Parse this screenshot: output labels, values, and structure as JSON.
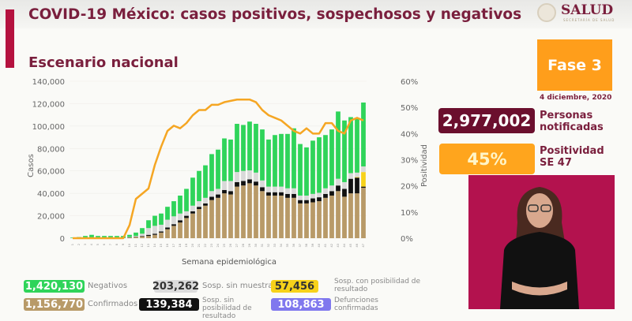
{
  "header": {
    "title": "COVID-19 México: casos positivos, sospechosos y negativos",
    "subtitle": "Escenario nacional",
    "logo_text": "SALUD",
    "logo_sub": "SECRETARÍA DE SALUD"
  },
  "panel": {
    "fase": "Fase 3",
    "date": "4 diciembre, 2020",
    "personas_value": "2,977,002",
    "personas_label_1": "Personas",
    "personas_label_2": "notificadas",
    "positividad_value": "45%",
    "positividad_label_1": "Positividad",
    "positividad_label_2": "SE 47"
  },
  "colors": {
    "negativos": "#2fd45a",
    "sin_muestra": "#d9d9d9",
    "con_posibilidad": "#f7d21a",
    "sin_posibilidad": "#111111",
    "confirmados": "#b89a68",
    "defunciones": "#8078ee",
    "line": "#f5a623",
    "maroon": "#7a1f3d"
  },
  "legend": [
    {
      "value": "1,420,130",
      "label": "Negativos"
    },
    {
      "value": "203,262",
      "label": "Sosp. sin muestra"
    },
    {
      "value": "57,456",
      "label": "Sosp. con posibilidad de resultado"
    },
    {
      "value": "1,156,770",
      "label": "Confirmados"
    },
    {
      "value": "139,384",
      "label": "Sosp. sin posibilidad de resultado"
    },
    {
      "value": "108,863",
      "label": "Defunciones confirmadas"
    }
  ],
  "chart_data": {
    "type": "bar",
    "stacked": true,
    "xlabel": "Semana epidemiológica",
    "ylabel": "Casos",
    "y2label": "Positividad",
    "ylim": [
      0,
      140000
    ],
    "y2lim": [
      0,
      60
    ],
    "yticks": [
      "0",
      "20,000",
      "40,000",
      "60,000",
      "80,000",
      "100,000",
      "120,000",
      "140,000"
    ],
    "y2ticks": [
      "0%",
      "10%",
      "20%",
      "30%",
      "40%",
      "50%",
      "60%"
    ],
    "categories": [
      1,
      2,
      3,
      4,
      5,
      6,
      7,
      8,
      9,
      10,
      11,
      12,
      13,
      14,
      15,
      16,
      17,
      18,
      19,
      20,
      21,
      22,
      23,
      24,
      25,
      26,
      27,
      28,
      29,
      30,
      31,
      32,
      33,
      34,
      35,
      36,
      37,
      38,
      39,
      40,
      41,
      42,
      43,
      44,
      45,
      46,
      47
    ],
    "series": [
      {
        "name": "Confirmados",
        "values": [
          0,
          0,
          0,
          0,
          0,
          0,
          0,
          0,
          0,
          500,
          1000,
          1500,
          2000,
          3000,
          5000,
          8000,
          11000,
          14000,
          18000,
          22000,
          26000,
          29000,
          34000,
          36000,
          40000,
          39000,
          46000,
          47000,
          49000,
          47000,
          42000,
          38000,
          38000,
          38000,
          36000,
          36000,
          31000,
          31000,
          32000,
          33000,
          36000,
          38000,
          42000,
          37000,
          40000,
          40000,
          45000
        ]
      },
      {
        "name": "Sosp. sin posibilidad de resultado",
        "values": [
          0,
          0,
          0,
          0,
          0,
          0,
          0,
          0,
          0,
          200,
          300,
          500,
          1000,
          1000,
          1000,
          1500,
          1500,
          2000,
          2000,
          2000,
          2000,
          2000,
          3000,
          3000,
          3000,
          3000,
          4000,
          4000,
          3500,
          3500,
          3500,
          3000,
          3000,
          3000,
          3500,
          3500,
          3000,
          3000,
          3500,
          3500,
          3500,
          4000,
          5000,
          7000,
          13000,
          14000,
          1000
        ]
      },
      {
        "name": "Sosp. con posibilidad de resultado",
        "values": [
          0,
          0,
          0,
          0,
          0,
          0,
          0,
          0,
          0,
          0,
          0,
          0,
          0,
          0,
          0,
          0,
          0,
          0,
          0,
          0,
          0,
          0,
          0,
          0,
          0,
          0,
          0,
          0,
          0,
          0,
          0,
          0,
          0,
          0,
          0,
          0,
          0,
          0,
          0,
          0,
          0,
          0,
          0,
          0,
          0,
          500,
          13000
        ]
      },
      {
        "name": "Sosp. sin muestra",
        "values": [
          0,
          0,
          0,
          0,
          0,
          0,
          0,
          0,
          0,
          300,
          700,
          2000,
          6000,
          7000,
          6000,
          7000,
          7000,
          6000,
          4000,
          5000,
          5000,
          5000,
          5000,
          5000,
          8000,
          9000,
          9000,
          9000,
          8000,
          8000,
          6000,
          5000,
          5000,
          5000,
          5000,
          5000,
          4000,
          4000,
          4000,
          4000,
          5000,
          5000,
          6000,
          6000,
          5000,
          4000,
          5000
        ]
      },
      {
        "name": "Negativos",
        "values": [
          500,
          1000,
          2000,
          3000,
          2000,
          2000,
          2000,
          2000,
          2000,
          2000,
          3000,
          5000,
          7000,
          9000,
          10000,
          11500,
          13500,
          16000,
          20000,
          25000,
          27000,
          29000,
          33000,
          35000,
          38000,
          37000,
          43000,
          41000,
          43500,
          43500,
          45500,
          42000,
          46000,
          47000,
          48500,
          53500,
          46000,
          43000,
          47500,
          49500,
          47500,
          50000,
          60000,
          55000,
          50000,
          48500,
          57000
        ]
      }
    ],
    "line": {
      "name": "Positividad",
      "values": [
        0,
        0,
        0,
        0,
        0,
        0,
        0,
        0,
        0,
        5,
        15,
        17,
        19,
        28,
        35,
        41,
        43,
        42,
        44,
        47,
        49,
        49,
        51,
        51,
        52,
        52.5,
        53,
        53,
        53,
        52,
        49,
        47,
        46,
        45,
        43,
        41,
        40,
        42,
        40,
        40,
        44,
        44,
        41,
        40,
        45,
        46,
        45
      ]
    }
  }
}
